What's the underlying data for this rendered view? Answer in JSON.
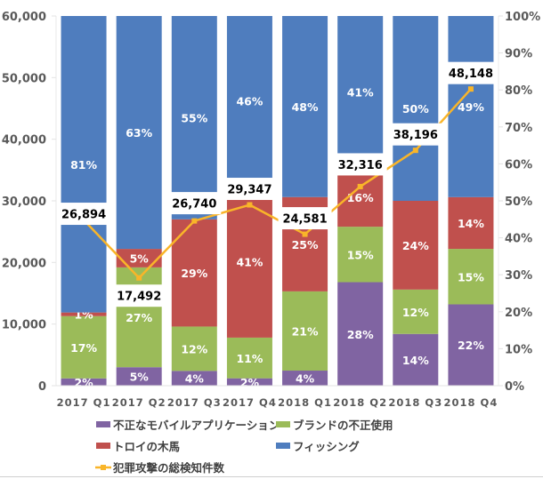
{
  "chart_data": {
    "type": "bar",
    "subtype": "100% stacked bar with line overlay",
    "title": "",
    "categories": [
      "2017 Q1",
      "2017 Q2",
      "2017 Q3",
      "2017 Q4",
      "2018 Q1",
      "2018 Q2",
      "2018 Q3",
      "2018 Q4"
    ],
    "series": [
      {
        "name": "不正なモバイルアプリケーション",
        "type": "bar",
        "axis": "right",
        "color": "#8064A2",
        "values": [
          2,
          5,
          4,
          2,
          4,
          28,
          14,
          22
        ]
      },
      {
        "name": "ブランドの不正使用",
        "type": "bar",
        "axis": "right",
        "color": "#9BBB59",
        "values": [
          17,
          27,
          12,
          11,
          21,
          15,
          12,
          15
        ]
      },
      {
        "name": "トロイの木馬",
        "type": "bar",
        "axis": "right",
        "color": "#C0504D",
        "values": [
          1,
          5,
          29,
          41,
          25,
          16,
          24,
          14
        ]
      },
      {
        "name": "フィッシング",
        "type": "bar",
        "axis": "right",
        "color": "#4F7DBE",
        "values": [
          81,
          63,
          55,
          46,
          48,
          41,
          50,
          49
        ]
      },
      {
        "name": "犯罪攻撃の総検知件数",
        "type": "line",
        "axis": "left",
        "color": "#F9B529",
        "values": [
          26894,
          17492,
          26740,
          29347,
          24581,
          32316,
          38196,
          48148
        ],
        "labels": [
          "26,894",
          "17,492",
          "26,740",
          "29,347",
          "24,581",
          "32,316",
          "38,196",
          "48,148"
        ]
      }
    ],
    "left_axis": {
      "label": "",
      "range": [
        0,
        60000
      ],
      "ticks": [
        "0",
        "10,000",
        "20,000",
        "30,000",
        "40,000",
        "50,000",
        "60,000"
      ]
    },
    "right_axis": {
      "label": "",
      "range": [
        0,
        100
      ],
      "unit": "%",
      "ticks": [
        "0%",
        "10%",
        "20%",
        "30%",
        "40%",
        "50%",
        "60%",
        "70%",
        "80%",
        "90%",
        "100%"
      ]
    },
    "xlabel": "",
    "grid": false,
    "legend_position": "bottom",
    "legend": [
      {
        "name": "不正なモバイルアプリケーション",
        "marker": "square",
        "color": "#8064A2"
      },
      {
        "name": "ブランドの不正使用",
        "marker": "square",
        "color": "#9BBB59"
      },
      {
        "name": "トロイの木馬",
        "marker": "square",
        "color": "#C0504D"
      },
      {
        "name": "フィッシング",
        "marker": "square",
        "color": "#4F7DBE"
      },
      {
        "name": "犯罪攻撃の総検知件数",
        "marker": "line",
        "color": "#F9B529"
      }
    ]
  }
}
